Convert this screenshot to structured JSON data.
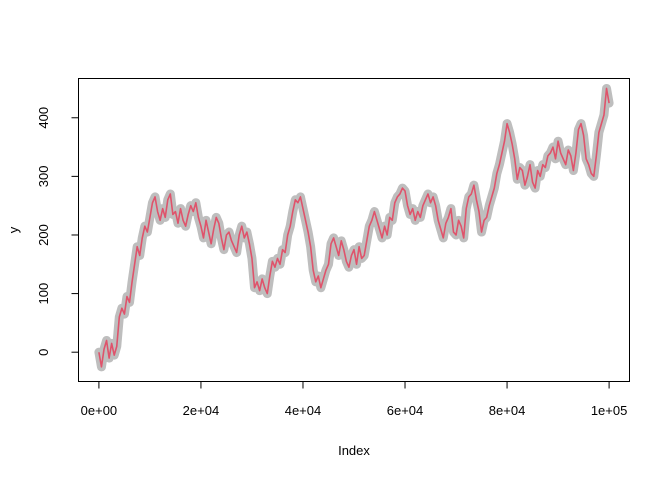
{
  "chart_data": {
    "type": "line",
    "title": "",
    "xlabel": "Index",
    "ylabel": "y",
    "xlim": [
      -4000,
      104000
    ],
    "ylim": [
      -50,
      467
    ],
    "xticks": [
      {
        "value": 0,
        "label": "0e+00"
      },
      {
        "value": 20000,
        "label": "2e+04"
      },
      {
        "value": 40000,
        "label": "4e+04"
      },
      {
        "value": 60000,
        "label": "6e+04"
      },
      {
        "value": 80000,
        "label": "8e+04"
      },
      {
        "value": 100000,
        "label": "1e+05"
      }
    ],
    "yticks": [
      {
        "value": 0,
        "label": "0"
      },
      {
        "value": 100,
        "label": "100"
      },
      {
        "value": 200,
        "label": "200"
      },
      {
        "value": 300,
        "label": "300"
      },
      {
        "value": 400,
        "label": "400"
      }
    ],
    "grid": false,
    "legend": "none",
    "colors": {
      "background_band": "#BEBEBE",
      "series_line": "#DF536B",
      "axes": "#000000"
    },
    "series": [
      {
        "x": [
          0,
          500,
          1000,
          1500,
          2000,
          2500,
          3000,
          3500,
          4000,
          4500,
          5000,
          5500,
          6000,
          6500,
          7000,
          7500,
          8000,
          8500,
          9000,
          9500,
          10000,
          10500,
          11000,
          11500,
          12000,
          12500,
          13000,
          13500,
          14000,
          14500,
          15000,
          15500,
          16000,
          16500,
          17000,
          17500,
          18000,
          18500,
          19000,
          19500,
          20000,
          20500,
          21000,
          21500,
          22000,
          22500,
          23000,
          23500,
          24000,
          24500,
          25000,
          25500,
          26000,
          26500,
          27000,
          27500,
          28000,
          28500,
          29000,
          29500,
          30000,
          30500,
          31000,
          31500,
          32000,
          32500,
          33000,
          33500,
          34000,
          34500,
          35000,
          35500,
          36000,
          36500,
          37000,
          37500,
          38000,
          38500,
          39000,
          39500,
          40000,
          40500,
          41000,
          41500,
          42000,
          42500,
          43000,
          43500,
          44000,
          44500,
          45000,
          45500,
          46000,
          46500,
          47000,
          47500,
          48000,
          48500,
          49000,
          49500,
          50000,
          50500,
          51000,
          51500,
          52000,
          52500,
          53000,
          53500,
          54000,
          54500,
          55000,
          55500,
          56000,
          56500,
          57000,
          57500,
          58000,
          58500,
          59000,
          59500,
          60000,
          60500,
          61000,
          61500,
          62000,
          62500,
          63000,
          63500,
          64000,
          64500,
          65000,
          65500,
          66000,
          66500,
          67000,
          67500,
          68000,
          68500,
          69000,
          69500,
          70000,
          70500,
          71000,
          71500,
          72000,
          72500,
          73000,
          73500,
          74000,
          74500,
          75000,
          75500,
          76000,
          76500,
          77000,
          77500,
          78000,
          78500,
          79000,
          79500,
          80000,
          80500,
          81000,
          81500,
          82000,
          82500,
          83000,
          83500,
          84000,
          84500,
          85000,
          85500,
          86000,
          86500,
          87000,
          87500,
          88000,
          88500,
          89000,
          89500,
          90000,
          90500,
          91000,
          91500,
          92000,
          92500,
          93000,
          93500,
          94000,
          94500,
          95000,
          95500,
          96000,
          96500,
          97000,
          97500,
          98000,
          98500,
          99000,
          99500,
          100000
        ],
        "y": [
          0,
          -25,
          5,
          20,
          -10,
          15,
          -5,
          10,
          60,
          75,
          65,
          95,
          85,
          120,
          150,
          180,
          165,
          195,
          215,
          205,
          230,
          255,
          265,
          240,
          225,
          245,
          230,
          260,
          270,
          235,
          240,
          220,
          245,
          225,
          215,
          235,
          250,
          240,
          255,
          230,
          215,
          195,
          225,
          205,
          185,
          210,
          230,
          220,
          195,
          175,
          200,
          205,
          190,
          180,
          170,
          200,
          215,
          195,
          205,
          185,
          160,
          110,
          120,
          105,
          125,
          110,
          100,
          130,
          155,
          145,
          160,
          150,
          175,
          170,
          200,
          215,
          240,
          260,
          255,
          265,
          245,
          225,
          205,
          180,
          140,
          120,
          130,
          110,
          125,
          140,
          150,
          185,
          195,
          180,
          165,
          190,
          175,
          155,
          145,
          165,
          175,
          150,
          180,
          160,
          165,
          190,
          215,
          225,
          240,
          225,
          210,
          195,
          215,
          200,
          230,
          225,
          255,
          265,
          270,
          280,
          275,
          250,
          235,
          245,
          225,
          240,
          230,
          250,
          260,
          270,
          255,
          265,
          250,
          225,
          210,
          195,
          220,
          230,
          245,
          205,
          200,
          225,
          215,
          195,
          245,
          265,
          270,
          285,
          260,
          240,
          205,
          225,
          230,
          250,
          265,
          280,
          305,
          320,
          340,
          360,
          390,
          375,
          355,
          330,
          295,
          315,
          310,
          285,
          300,
          320,
          290,
          280,
          310,
          300,
          320,
          315,
          335,
          340,
          350,
          330,
          360,
          340,
          330,
          320,
          345,
          335,
          310,
          340,
          380,
          390,
          370,
          330,
          320,
          305,
          300,
          335,
          375,
          390,
          405,
          450,
          425
        ]
      }
    ]
  }
}
